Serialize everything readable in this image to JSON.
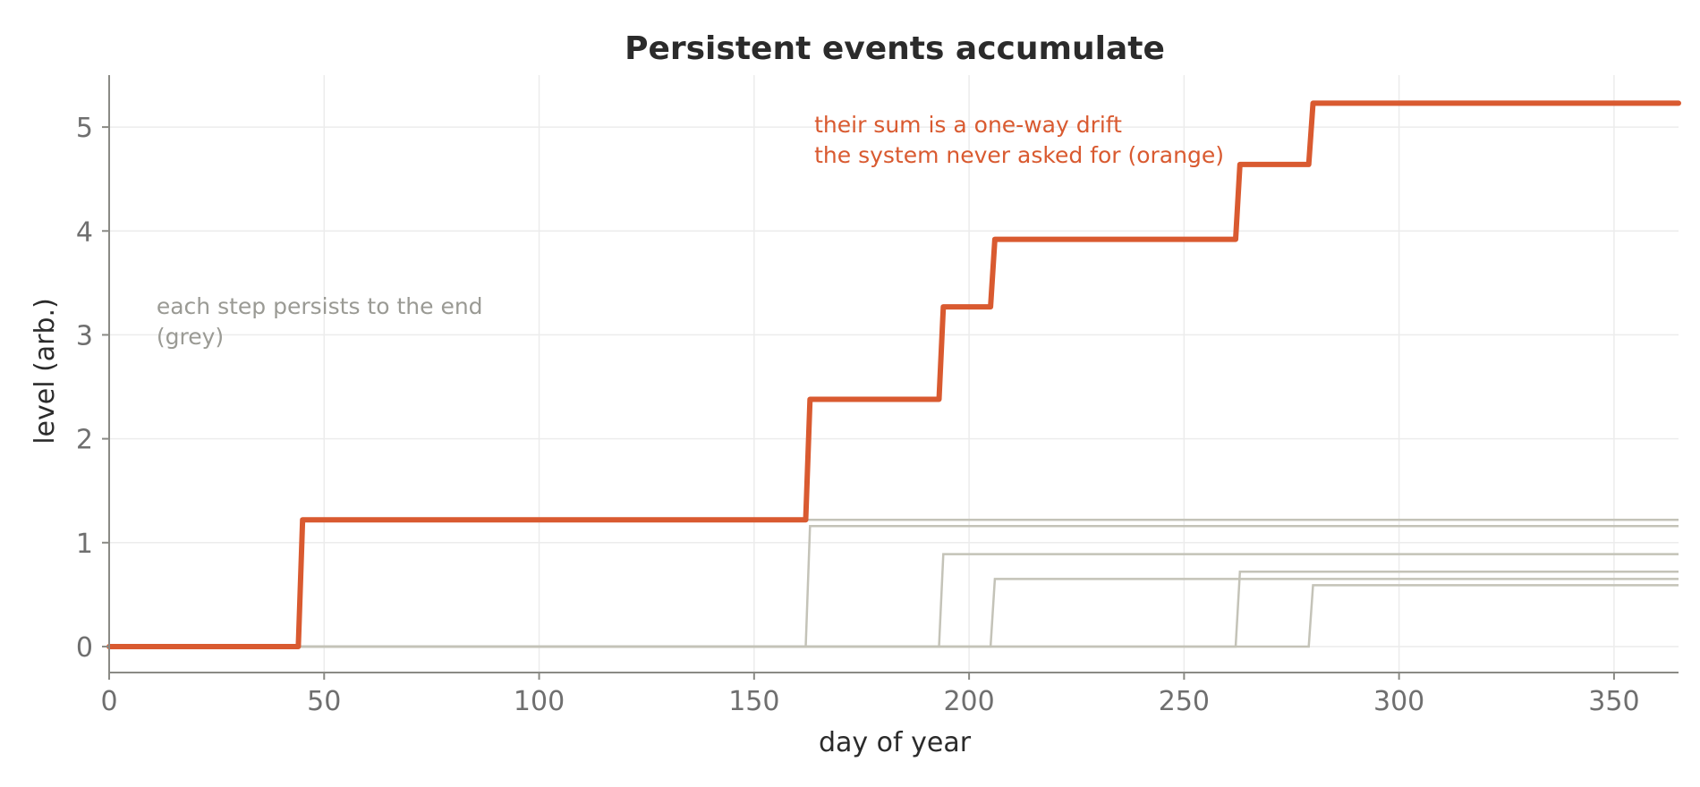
{
  "chart_data": {
    "type": "line",
    "title": "Persistent events accumulate",
    "xlabel": "day of year",
    "ylabel": "level (arb.)",
    "xlim": [
      0,
      365
    ],
    "ylim": [
      -0.25,
      5.5
    ],
    "xticks": [
      0,
      50,
      100,
      150,
      200,
      250,
      300,
      350
    ],
    "yticks": [
      0,
      1,
      2,
      3,
      4,
      5
    ],
    "grid": true,
    "colors": {
      "total": "#d95a30",
      "events": "#c4c3b8",
      "grid": "#ececec",
      "axis": "#8a8a85"
    },
    "events": [
      {
        "day": 44,
        "size": 1.22
      },
      {
        "day": 162,
        "size": 1.16
      },
      {
        "day": 193,
        "size": 0.89
      },
      {
        "day": 205,
        "size": 0.65
      },
      {
        "day": 262,
        "size": 0.72
      },
      {
        "day": 279,
        "size": 0.59
      }
    ],
    "total_series": {
      "x": [
        0,
        44,
        45,
        162,
        163,
        193,
        194,
        205,
        206,
        262,
        263,
        279,
        280,
        365
      ],
      "y": [
        0,
        0,
        1.22,
        1.22,
        2.38,
        2.38,
        3.27,
        3.27,
        3.92,
        3.92,
        4.64,
        4.64,
        5.23,
        5.23
      ]
    },
    "annotations": [
      {
        "lines": [
          "each step persists to the end",
          "(grey)"
        ],
        "x": 11,
        "y": 3.2,
        "color": "grey"
      },
      {
        "lines": [
          "their sum is a one-way drift",
          "the system never asked for (orange)"
        ],
        "x": 164,
        "y": 4.95,
        "color": "orange"
      }
    ]
  }
}
